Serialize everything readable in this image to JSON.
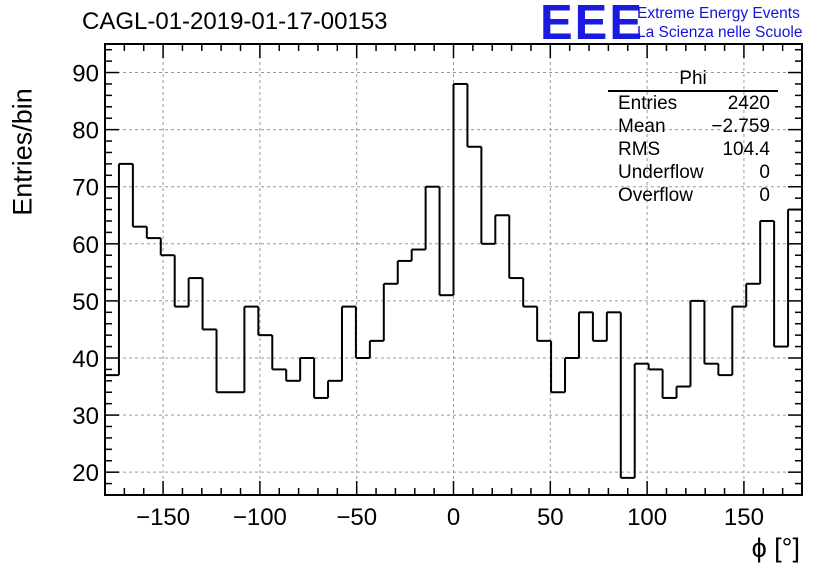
{
  "title": "CAGL-01-2019-01-17-00153",
  "logo": {
    "mark": "EEE",
    "line1": "Extreme Energy Events",
    "line2": "La Scienza nelle Scuole",
    "color": "#1a1ae0"
  },
  "stats_box": {
    "title": "Phi",
    "rows": [
      {
        "label": "Entries",
        "value": "2420"
      },
      {
        "label": "Mean",
        "value": "−2.759"
      },
      {
        "label": "RMS",
        "value": "104.4"
      },
      {
        "label": "Underflow",
        "value": "0"
      },
      {
        "label": "Overflow",
        "value": "0"
      }
    ]
  },
  "chart_data": {
    "type": "bar",
    "style": "step-histogram",
    "title": "CAGL-01-2019-01-17-00153",
    "xlabel": "ϕ [°]",
    "ylabel": "Entries/bin",
    "xlim": [
      -180,
      180
    ],
    "ylim": [
      16,
      95
    ],
    "bin_edges": [
      -180,
      -172.8,
      -165.6,
      -158.4,
      -151.2,
      -144,
      -136.8,
      -129.6,
      -122.4,
      -115.2,
      -108,
      -100.8,
      -93.6,
      -86.4,
      -79.2,
      -72,
      -64.8,
      -57.6,
      -50.4,
      -43.2,
      -36,
      -28.8,
      -21.6,
      -14.4,
      -7.2,
      0,
      7.2,
      14.4,
      21.6,
      28.8,
      36,
      43.2,
      50.4,
      57.6,
      64.8,
      72,
      79.2,
      86.4,
      93.6,
      100.8,
      108,
      115.2,
      122.4,
      129.6,
      136.8,
      144,
      151.2,
      158.4,
      165.6,
      172.8,
      180
    ],
    "values": [
      37,
      74,
      63,
      61,
      58,
      49,
      54,
      45,
      34,
      34,
      49,
      44,
      38,
      36,
      40,
      33,
      36,
      49,
      40,
      43,
      53,
      57,
      59,
      70,
      51,
      88,
      77,
      60,
      65,
      54,
      49,
      43,
      34,
      40,
      48,
      43,
      48,
      19,
      39,
      38,
      33,
      35,
      50,
      39,
      37,
      49,
      53,
      64,
      42,
      66
    ],
    "x_ticks": [
      -150,
      -100,
      -50,
      0,
      50,
      100,
      150
    ],
    "x_tick_labels": [
      "−150",
      "−100",
      "−50",
      "0",
      "50",
      "100",
      "150"
    ],
    "y_ticks": [
      20,
      30,
      40,
      50,
      60,
      70,
      80,
      90
    ],
    "y_tick_labels": [
      "20",
      "30",
      "40",
      "50",
      "60",
      "70",
      "80",
      "90"
    ],
    "grid": true,
    "legend": "stats box top-right"
  }
}
